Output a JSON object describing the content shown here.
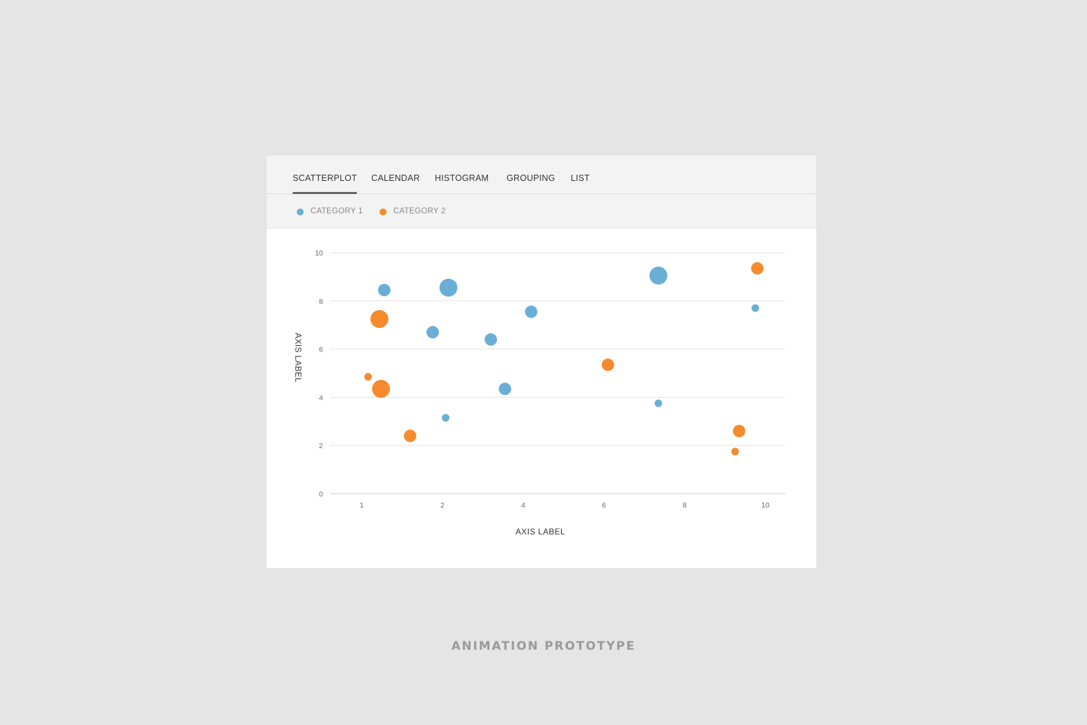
{
  "tabs": [
    {
      "label": "SCATTERPLOT",
      "active": true
    },
    {
      "label": "CALENDAR",
      "active": false
    },
    {
      "label": "HISTOGRAM",
      "active": false
    },
    {
      "label": "GROUPING",
      "active": false
    },
    {
      "label": "LIST",
      "active": false
    }
  ],
  "legend": [
    {
      "label": "CATEGORY 1",
      "color": "#6aaed6"
    },
    {
      "label": "CATEGORY 2",
      "color": "#f58b2c"
    }
  ],
  "chart_data": {
    "type": "scatter",
    "title": "",
    "xlabel": "AXIS LABEL",
    "ylabel": "AXIS LABEL",
    "x_ticks": [
      1,
      2,
      4,
      6,
      8,
      10
    ],
    "y_ticks": [
      0,
      2,
      4,
      6,
      8,
      10
    ],
    "ylim": [
      0,
      10
    ],
    "grid": true,
    "legend_position": "top-left",
    "size_unit": "relative",
    "series": [
      {
        "name": "CATEGORY 1",
        "color": "#6aaed6",
        "points": [
          {
            "x": 1.28,
            "y": 8.45,
            "size": 2
          },
          {
            "x": 2.15,
            "y": 8.55,
            "size": 3
          },
          {
            "x": 1.88,
            "y": 6.7,
            "size": 2
          },
          {
            "x": 2.08,
            "y": 3.15,
            "size": 1
          },
          {
            "x": 3.2,
            "y": 6.4,
            "size": 2
          },
          {
            "x": 3.55,
            "y": 4.35,
            "size": 2
          },
          {
            "x": 4.2,
            "y": 7.55,
            "size": 2
          },
          {
            "x": 7.35,
            "y": 9.05,
            "size": 3
          },
          {
            "x": 7.35,
            "y": 3.75,
            "size": 1
          },
          {
            "x": 9.75,
            "y": 7.7,
            "size": 1
          }
        ]
      },
      {
        "name": "CATEGORY 2",
        "color": "#f58b2c",
        "points": [
          {
            "x": 1.22,
            "y": 7.25,
            "size": 3
          },
          {
            "x": 1.08,
            "y": 4.85,
            "size": 1
          },
          {
            "x": 1.24,
            "y": 4.35,
            "size": 3
          },
          {
            "x": 1.6,
            "y": 2.4,
            "size": 2
          },
          {
            "x": 6.1,
            "y": 5.35,
            "size": 2
          },
          {
            "x": 9.8,
            "y": 9.35,
            "size": 2
          },
          {
            "x": 9.35,
            "y": 2.6,
            "size": 2
          },
          {
            "x": 9.25,
            "y": 1.75,
            "size": 1
          }
        ]
      }
    ]
  },
  "footer": {
    "caption": "ANIMATION PROTOTYPE"
  }
}
